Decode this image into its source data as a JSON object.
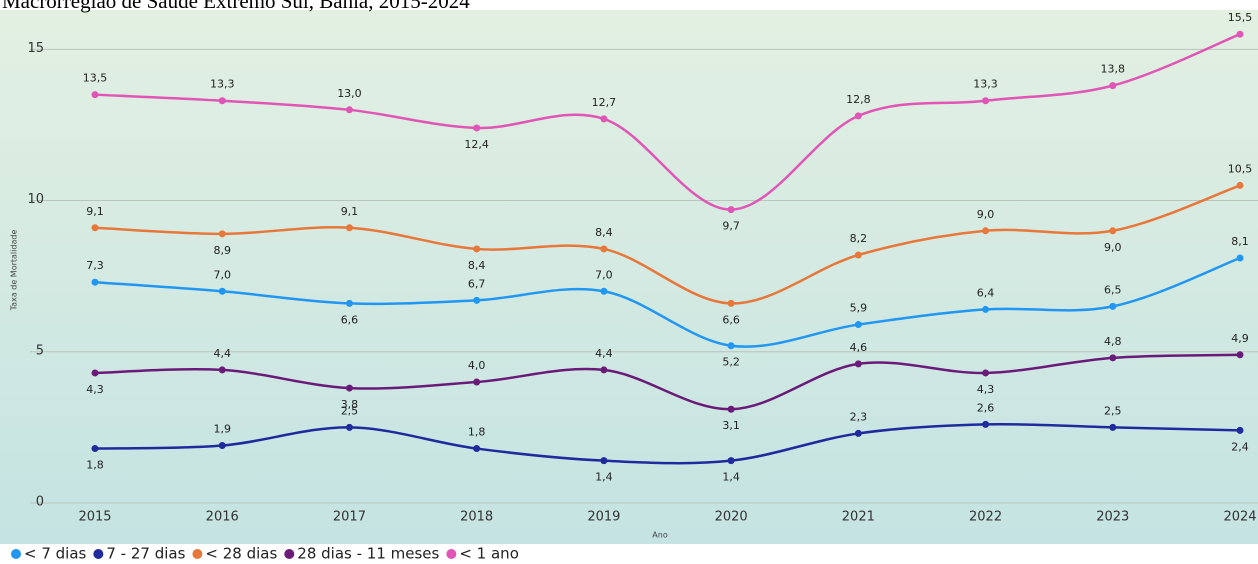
{
  "chart_data": {
    "type": "line",
    "title": "Macrorregião de Saúde Extremo Sul, Bahia, 2015-2024",
    "x_label": "Ano",
    "y_label": "Taxa de Mortalidade",
    "categories": [
      "2015",
      "2016",
      "2017",
      "2018",
      "2019",
      "2020",
      "2021",
      "2022",
      "2023",
      "2024"
    ],
    "ylim": [
      0,
      16.3
    ],
    "yticks": [
      0,
      5,
      10,
      15
    ],
    "grid": true,
    "legend": "bottom",
    "smooth": true,
    "series": [
      {
        "name": "< 7 dias",
        "color": "#2196f3",
        "values": [
          7.3,
          7.0,
          6.6,
          6.7,
          7.0,
          5.2,
          5.9,
          6.4,
          6.5,
          8.1
        ],
        "value_labels": [
          "7,3",
          "7,0",
          "6,6",
          "6,7",
          "7,0",
          "5,2",
          "5,9",
          "6,4",
          "6,5",
          "8,1"
        ]
      },
      {
        "name": "7 - 27 dias",
        "color": "#1f2a9c",
        "values": [
          1.8,
          1.9,
          2.5,
          1.8,
          1.4,
          1.4,
          2.3,
          2.6,
          2.5,
          2.4
        ],
        "value_labels": [
          "1,8",
          "1,9",
          "2,5",
          "1,8",
          "1,4",
          "1,4",
          "2,3",
          "2,6",
          "2,5",
          "2,4"
        ]
      },
      {
        "name": "< 28 dias",
        "color": "#e8773a",
        "values": [
          9.1,
          8.9,
          9.1,
          8.4,
          8.4,
          6.6,
          8.2,
          9.0,
          9.0,
          10.5
        ],
        "value_labels": [
          "9,1",
          "8,9",
          "9,1",
          "8,4",
          "8,4",
          "6,6",
          "8,2",
          "9,0",
          "9,0",
          "10,5"
        ]
      },
      {
        "name": "28 dias - 11 meses",
        "color": "#6a1b7a",
        "values": [
          4.3,
          4.4,
          3.8,
          4.0,
          4.4,
          3.1,
          4.6,
          4.3,
          4.8,
          4.9
        ],
        "value_labels": [
          "4,3",
          "4,4",
          "3,8",
          "4,0",
          "4,4",
          "3,1",
          "4,6",
          "4,3",
          "4,8",
          "4,9"
        ]
      },
      {
        "name": "< 1 ano",
        "color": "#e055b5",
        "values": [
          13.5,
          13.3,
          13.0,
          12.4,
          12.7,
          9.7,
          12.8,
          13.3,
          13.8,
          15.5
        ],
        "value_labels": [
          "13,5",
          "13,3",
          "13,0",
          "12,4",
          "12,7",
          "9,7",
          "12,8",
          "13,3",
          "13,8",
          "15,5"
        ]
      }
    ]
  }
}
